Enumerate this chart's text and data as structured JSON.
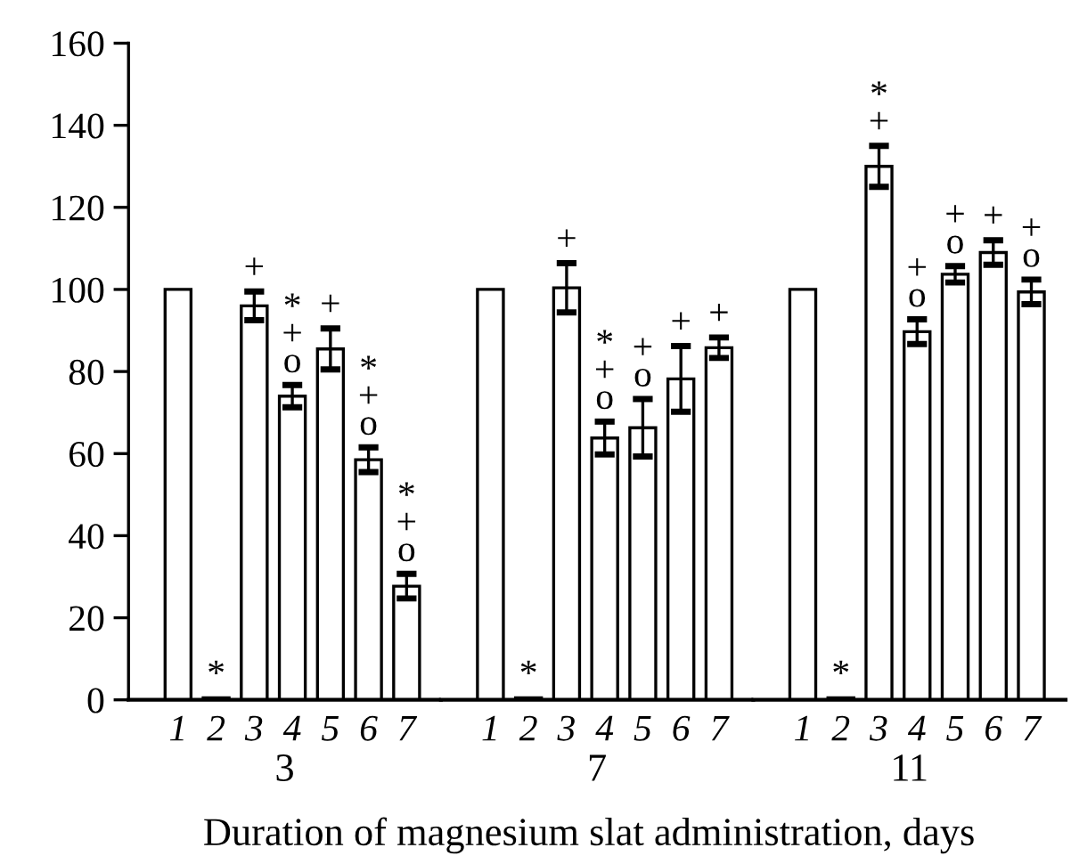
{
  "chart_data": [
    {
      "type": "bar",
      "xlabel": "3",
      "categories": [
        "1",
        "2",
        "3",
        "4",
        "5",
        "6",
        "7"
      ],
      "series": [
        {
          "color": "#ffffff",
          "values": [
            100,
            0.5,
            96,
            74,
            85.5,
            58.5,
            27.7
          ],
          "errors": [
            null,
            null,
            3.5,
            2.7,
            5,
            3,
            3
          ]
        }
      ],
      "ylim": [
        0,
        160
      ],
      "yticks": [
        0,
        20,
        40,
        60,
        80,
        100,
        120,
        140,
        160
      ],
      "annotations": [
        {
          "text": "*",
          "x": "2",
          "y": 0.5
        },
        {
          "text": "+",
          "x": "3",
          "y": 99.5
        },
        {
          "text": "*\n+\no",
          "x": "4",
          "y": 76.7
        },
        {
          "text": "+",
          "x": "5",
          "y": 90.5
        },
        {
          "text": "*\n+\no",
          "x": "6",
          "y": 61.5
        },
        {
          "text": "*\n+\no",
          "x": "7",
          "y": 30.7
        }
      ]
    },
    {
      "type": "bar",
      "xlabel": "7",
      "categories": [
        "1",
        "2",
        "3",
        "4",
        "5",
        "6",
        "7"
      ],
      "series": [
        {
          "color": "#ffffff",
          "values": [
            100,
            0.5,
            100.4,
            63.8,
            66.3,
            78.2,
            85.8
          ],
          "errors": [
            null,
            null,
            6,
            4,
            7,
            8,
            2.5
          ]
        }
      ],
      "ylim": [
        0,
        160
      ],
      "tick_labels": "x",
      "annotations": [
        {
          "text": "*",
          "x": "2",
          "y": 0.5
        },
        {
          "text": "+",
          "x": "3",
          "y": 106.4
        },
        {
          "text": "*\n+\no",
          "x": "4",
          "y": 67.8
        },
        {
          "text": "+\no",
          "x": "5",
          "y": 73.3
        },
        {
          "text": "+",
          "x": "6",
          "y": 86.2
        },
        {
          "text": "+",
          "x": "7",
          "y": 88.3
        },
        "Duration of magnesium slat administration, days"
      ]
    },
    {
      "type": "bar",
      "xlabel": "11",
      "categories": [
        "1",
        "2",
        "3",
        "4",
        "5",
        "6",
        "7"
      ],
      "series": [
        {
          "color": "#ffffff",
          "values": [
            100,
            0.5,
            130,
            89.7,
            103.7,
            109,
            99.4
          ],
          "errors": [
            null,
            null,
            5,
            3,
            2,
            3,
            3
          ]
        }
      ],
      "ylim": [
        0,
        160
      ],
      "tick_labels": "x",
      "annotations": [
        {
          "text": "*",
          "x": "2",
          "y": 0.5
        },
        {
          "text": "*\n+",
          "x": "3",
          "y": 135
        },
        {
          "text": "+\no",
          "x": "4",
          "y": 92.7
        },
        {
          "text": "+\no",
          "x": "5",
          "y": 105.7
        },
        {
          "text": "+",
          "x": "6",
          "y": 112
        },
        {
          "text": "+\no",
          "x": "7",
          "y": 102.4
        }
      ]
    }
  ]
}
